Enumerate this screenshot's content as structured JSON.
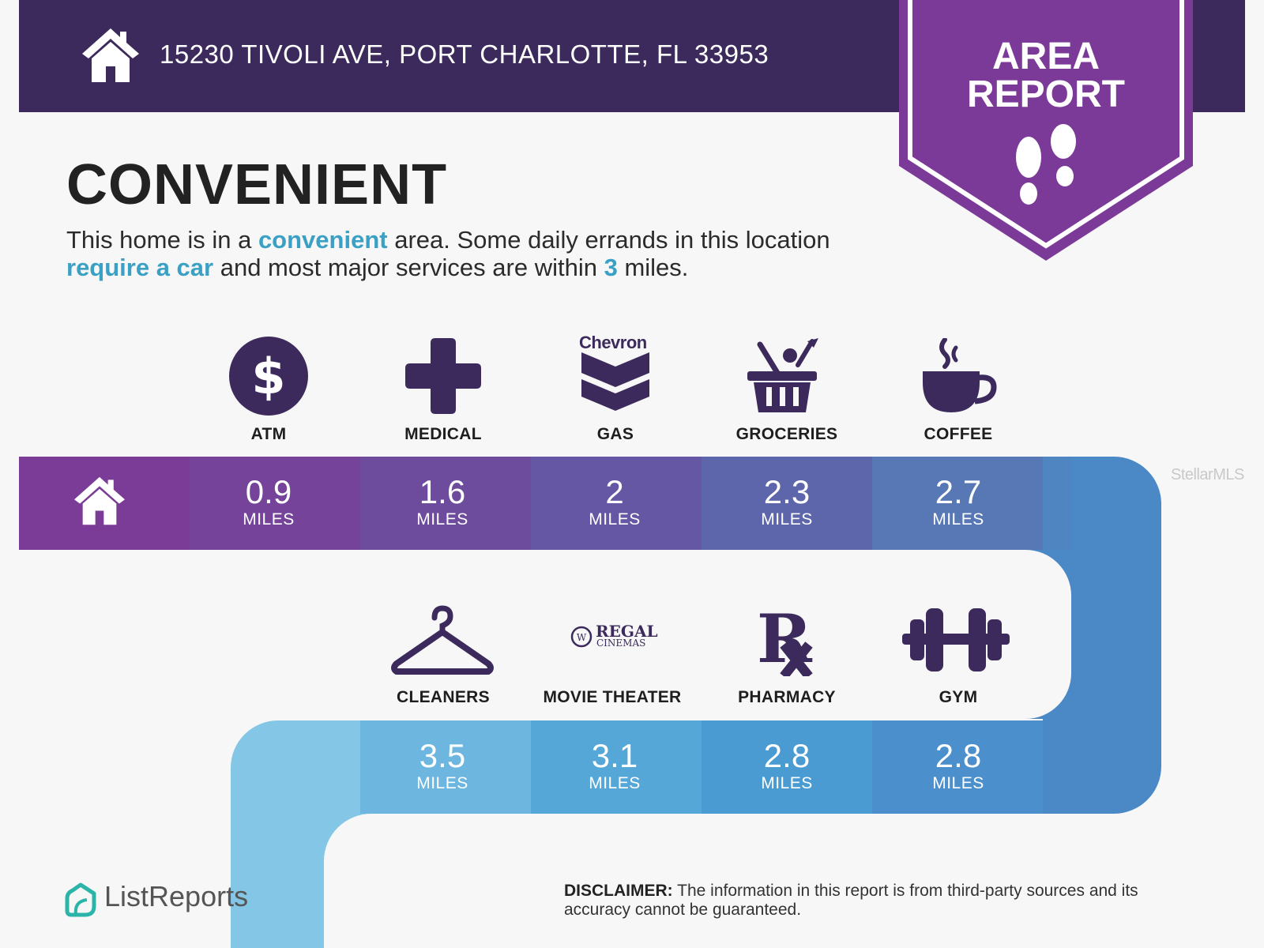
{
  "header": {
    "address": "15230 TIVOLI AVE, PORT CHARLOTTE, FL 33953",
    "badge_line1": "AREA",
    "badge_line2": "REPORT"
  },
  "intro": {
    "headline": "CONVENIENT",
    "part1": "This home is in a ",
    "hl1": "convenient",
    "part2": " area. Some daily errands in this location ",
    "hl2": "require a car",
    "part3": " and most major services are within ",
    "hl3": "3",
    "part4": " miles."
  },
  "amenities": [
    {
      "label": "ATM",
      "distance": "0.9",
      "unit": "MILES",
      "icon": "dollar-icon"
    },
    {
      "label": "MEDICAL",
      "distance": "1.6",
      "unit": "MILES",
      "icon": "medical-cross-icon"
    },
    {
      "label": "GAS",
      "distance": "2",
      "unit": "MILES",
      "icon": "chevron-logo-icon",
      "brand": "Chevron"
    },
    {
      "label": "GROCERIES",
      "distance": "2.3",
      "unit": "MILES",
      "icon": "grocery-basket-icon"
    },
    {
      "label": "COFFEE",
      "distance": "2.7",
      "unit": "MILES",
      "icon": "coffee-cup-icon"
    },
    {
      "label": "CLEANERS",
      "distance": "3.5",
      "unit": "MILES",
      "icon": "hanger-icon"
    },
    {
      "label": "MOVIE THEATER",
      "distance": "3.1",
      "unit": "MILES",
      "icon": "regal-cinemas-logo",
      "brand": "REGAL CINEMAS"
    },
    {
      "label": "PHARMACY",
      "distance": "2.8",
      "unit": "MILES",
      "icon": "rx-icon"
    },
    {
      "label": "GYM",
      "distance": "2.8",
      "unit": "MILES",
      "icon": "dumbbell-icon"
    }
  ],
  "watermark": "StellarMLS",
  "footer": {
    "brand": "ListReports",
    "disclaimer_label": "DISCLAIMER:",
    "disclaimer_text": " The information in this report is from third-party sources and its accuracy cannot be guaranteed."
  },
  "colors": {
    "header": "#3c2a5c",
    "badge": "#7c3a98",
    "accent": "#3aa0c4",
    "row1": [
      "#7a3c96",
      "#75449a",
      "#6d4c9e",
      "#6557a4",
      "#5d66ab",
      "#5777b5",
      "#4f86c2"
    ],
    "row2": [
      "#84c6e6",
      "#6cb6e0",
      "#55a7d8",
      "#4a9bd2",
      "#4b8fcc",
      "#4a88c6"
    ]
  }
}
